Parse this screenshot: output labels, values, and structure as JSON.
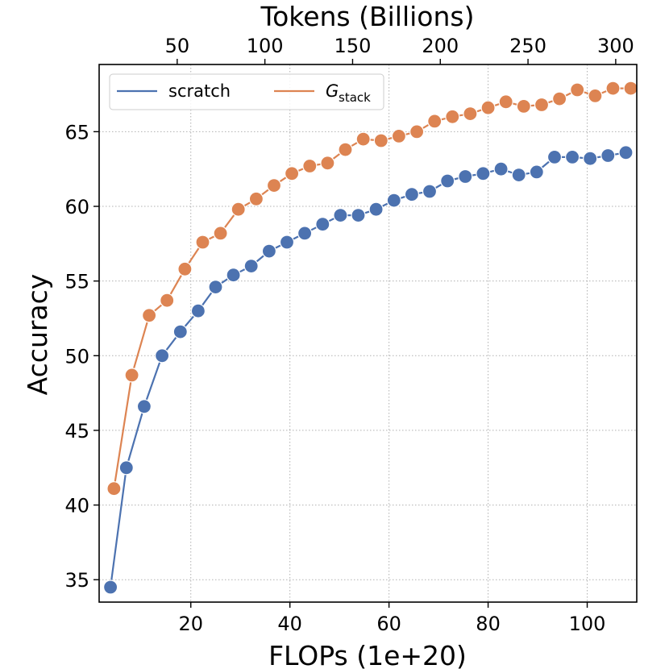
{
  "chart_data": {
    "type": "line",
    "xlabel": "FLOPs (1e+20)",
    "ylabel": "Accuracy",
    "secondary_xlabel": "Tokens (Billions)",
    "xlim": [
      1.5,
      110
    ],
    "ylim": [
      33.5,
      69.5
    ],
    "xticks": [
      "20",
      "40",
      "60",
      "80",
      "100"
    ],
    "yticks": [
      "35",
      "40",
      "45",
      "50",
      "55",
      "60",
      "65"
    ],
    "secondary_xticks": [
      "50",
      "100",
      "150",
      "200",
      "250",
      "300"
    ],
    "secondary_xlim": [
      5.5,
      312
    ],
    "grid": true,
    "grid_style": "dotted",
    "legend_position": "top-left",
    "colors": {
      "scratch": "#4c72b0",
      "gstack": "#dd8452"
    },
    "series": [
      {
        "name": "scratch",
        "x": [
          3.8,
          7.0,
          10.6,
          14.2,
          17.9,
          21.5,
          25.0,
          28.6,
          32.2,
          35.8,
          39.4,
          43.0,
          46.6,
          50.2,
          53.8,
          57.4,
          61.0,
          64.6,
          68.2,
          71.8,
          75.4,
          79.0,
          82.6,
          86.2,
          89.8,
          93.4,
          97.0,
          100.6,
          104.2,
          107.8
        ],
        "y": [
          34.5,
          42.5,
          46.6,
          50.0,
          51.6,
          53.0,
          54.6,
          55.4,
          56.0,
          57.0,
          57.6,
          58.2,
          58.8,
          59.4,
          59.4,
          59.8,
          60.4,
          60.8,
          61.0,
          61.7,
          62.0,
          62.2,
          62.5,
          62.1,
          62.3,
          63.3,
          63.3,
          63.2,
          63.4,
          63.6
        ]
      },
      {
        "name": "G",
        "name_subscript": "stack",
        "x": [
          4.5,
          8.1,
          11.6,
          15.2,
          18.8,
          22.4,
          26.0,
          29.6,
          33.2,
          36.8,
          40.4,
          44.0,
          47.6,
          51.2,
          54.8,
          58.4,
          62.0,
          65.6,
          69.2,
          72.8,
          76.4,
          80.0,
          83.6,
          87.2,
          90.8,
          94.4,
          98.0,
          101.6,
          105.2,
          108.8
        ],
        "y": [
          41.1,
          48.7,
          52.7,
          53.7,
          55.8,
          57.6,
          58.2,
          59.8,
          60.5,
          61.4,
          62.2,
          62.7,
          62.9,
          63.8,
          64.5,
          64.4,
          64.7,
          65.0,
          65.7,
          66.0,
          66.2,
          66.6,
          67.0,
          66.7,
          66.8,
          67.2,
          67.8,
          67.4,
          67.9,
          67.9
        ]
      }
    ]
  }
}
